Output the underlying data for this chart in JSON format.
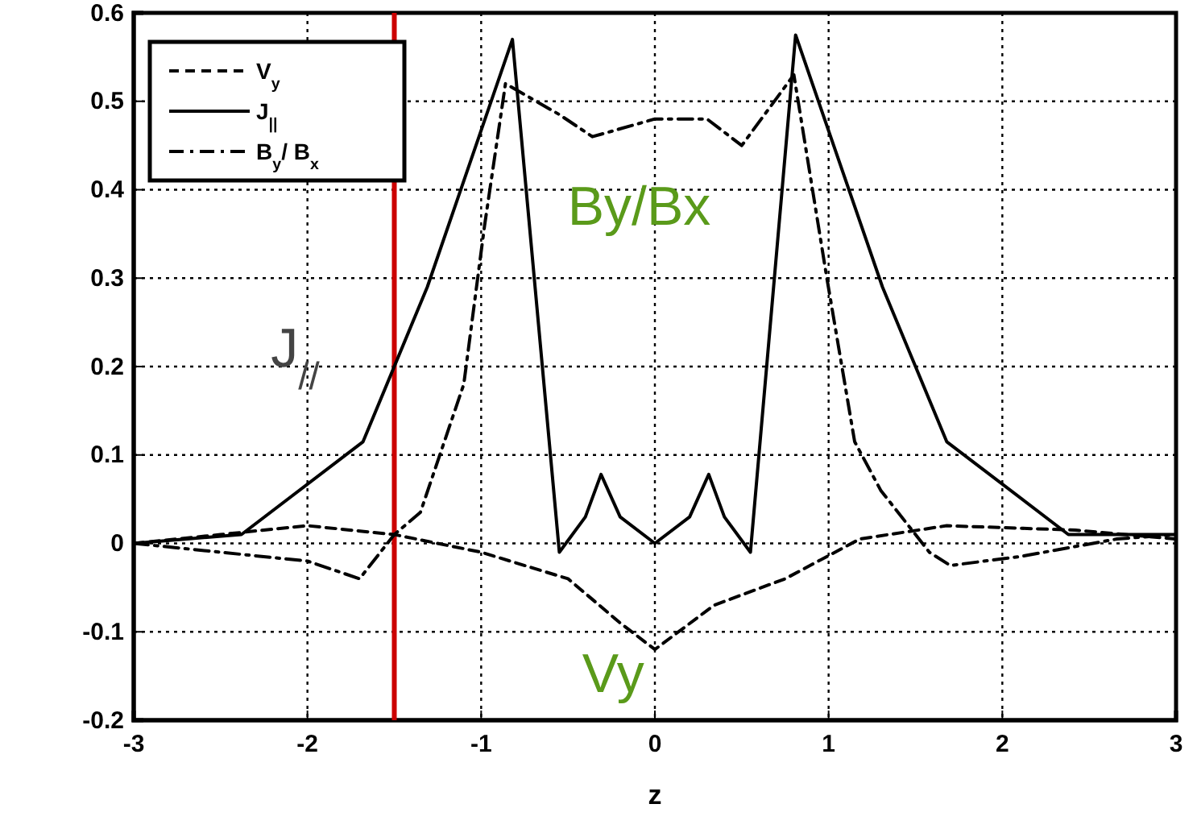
{
  "chart_data": {
    "type": "line",
    "xlabel": "z",
    "xlim": [
      -3,
      3
    ],
    "ylim": [
      -0.2,
      0.6
    ],
    "xticks": [
      -3,
      -2,
      -1,
      0,
      1,
      2,
      3
    ],
    "yticks": [
      -0.2,
      -0.1,
      0,
      0.1,
      0.2,
      0.3,
      0.4,
      0.5,
      0.6
    ],
    "grid": true,
    "legend": "top left",
    "marker": "none",
    "series": [
      {
        "name": "V$_{y}$",
        "color": "#000000",
        "line_style": "dashed",
        "x": [
          -3,
          -2.5,
          -2,
          -1.5,
          -1,
          -0.5,
          -0.2,
          0,
          0.34,
          0.75,
          1.18,
          1.68,
          2.42,
          3
        ],
        "values": [
          0,
          0.01,
          0.02,
          0.01,
          -0.01,
          -0.04,
          -0.09,
          -0.12,
          -0.07,
          -0.04,
          0.005,
          0.02,
          0.015,
          0.005
        ]
      },
      {
        "name": "J$_{||}$",
        "color": "#000000",
        "line_style": "solid",
        "x": [
          -3,
          -2.38,
          -1.68,
          -1.31,
          -0.82,
          -0.55,
          -0.4,
          -0.31,
          -0.2,
          0,
          0.2,
          0.31,
          0.4,
          0.55,
          0.81,
          1.31,
          1.68,
          2.38,
          3
        ],
        "values": [
          0,
          0.01,
          0.115,
          0.29,
          0.57,
          -0.01,
          0.03,
          0.078,
          0.03,
          0,
          0.03,
          0.078,
          0.03,
          -0.01,
          0.575,
          0.29,
          0.115,
          0.01,
          0.01
        ]
      },
      {
        "name": "B$_{y}$/ B$_{x}$",
        "color": "#000000",
        "line_style": "dashdot",
        "x": [
          -3,
          -2.5,
          -2,
          -1.7,
          -1.5,
          -1.35,
          -1.1,
          -0.98,
          -0.86,
          -0.55,
          -0.36,
          0,
          0.3,
          0.5,
          0.8,
          0.99,
          1.15,
          1.3,
          1.58,
          1.7,
          2.1,
          2.66,
          3
        ],
        "values": [
          0,
          -0.01,
          -0.02,
          -0.04,
          0.01,
          0.035,
          0.18,
          0.36,
          0.52,
          0.485,
          0.46,
          0.48,
          0.48,
          0.45,
          0.53,
          0.3,
          0.115,
          0.06,
          -0.01,
          -0.025,
          -0.015,
          0.005,
          0.01
        ]
      }
    ],
    "ref_lines": [
      {
        "axis": "x",
        "value": -1.5,
        "color": "#cc0000"
      }
    ],
    "annotations": [
      "J$_{//}$",
      "By/Bx",
      "Vy"
    ]
  }
}
